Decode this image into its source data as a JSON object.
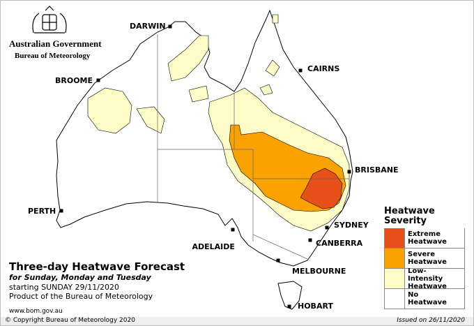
{
  "header": {
    "agency": "Australian Government",
    "bureau": "Bureau of Meteorology"
  },
  "cities": [
    {
      "name": "DARWIN"
    },
    {
      "name": "CAIRNS"
    },
    {
      "name": "BROOME"
    },
    {
      "name": "BRISBANE"
    },
    {
      "name": "PERTH"
    },
    {
      "name": "SYDNEY"
    },
    {
      "name": "ADELAIDE"
    },
    {
      "name": "CANBERRA"
    },
    {
      "name": "MELBOURNE"
    },
    {
      "name": "HOBART"
    }
  ],
  "title": {
    "main": "Three-day Heatwave Forecast",
    "days": "for Sunday, Monday and Tuesday",
    "start": "starting SUNDAY 29/11/2020",
    "product": "Product of the Bureau of Meteorology"
  },
  "legend": {
    "title": "Heatwave Severity",
    "items": [
      {
        "label": "Extreme Heatwave",
        "color": "#e8501a"
      },
      {
        "label": "Severe Heatwave",
        "color": "#f9a200"
      },
      {
        "label": "Low-Intensity Heatwave",
        "color": "#fdfbc6"
      },
      {
        "label": "No Heatwave",
        "color": "#ffffff"
      }
    ]
  },
  "footer": {
    "website": "www.bom.gov.au",
    "copyright": "© Copyright Bureau of Meteorology 2020",
    "issued": "Issued on 26/11/2020"
  }
}
